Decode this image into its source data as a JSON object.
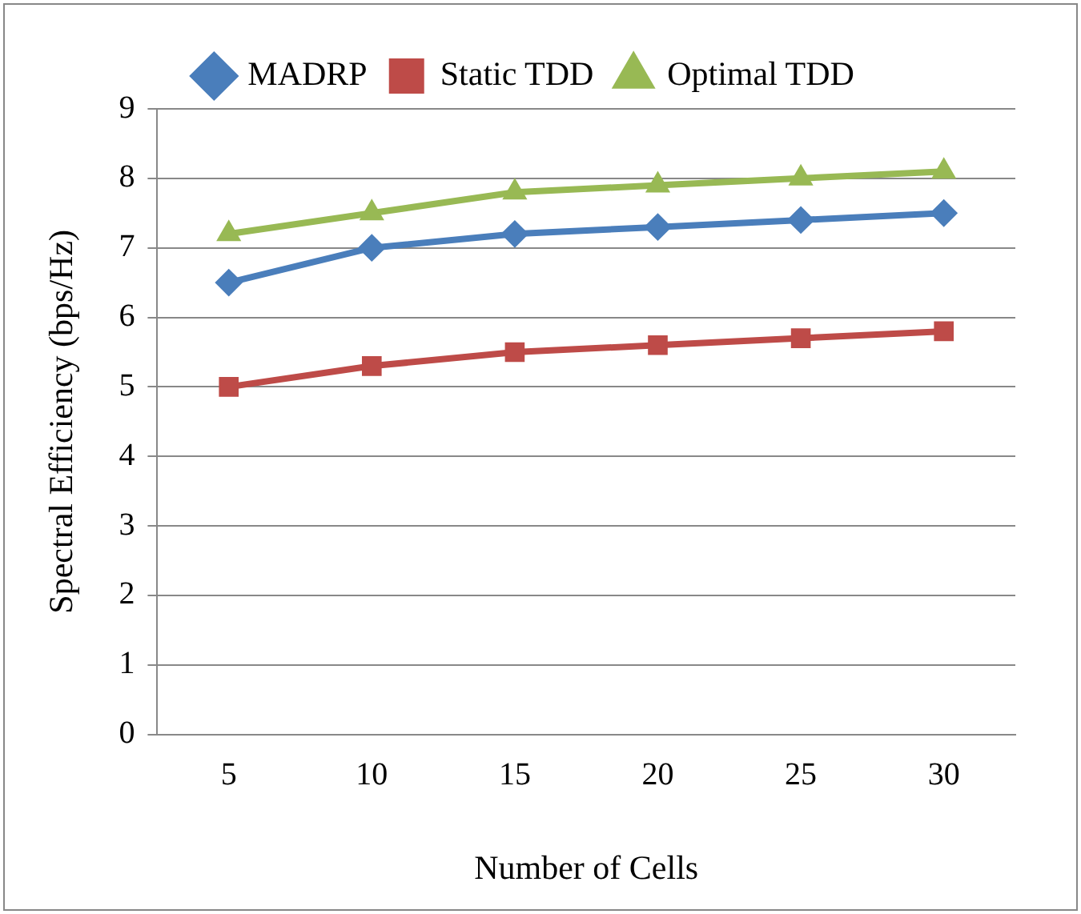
{
  "chart_data": {
    "type": "line",
    "xlabel": "Number of Cells",
    "ylabel": "Spectral Efficiency (bps/Hz)",
    "categories": [
      "5",
      "10",
      "15",
      "20",
      "25",
      "30"
    ],
    "series": [
      {
        "name": "MADRP",
        "color": "#4a7ebb",
        "marker": "diamond",
        "values": [
          6.5,
          7.0,
          7.2,
          7.3,
          7.4,
          7.5
        ]
      },
      {
        "name": "Static TDD",
        "color": "#be4b48",
        "marker": "square",
        "values": [
          5.0,
          5.3,
          5.5,
          5.6,
          5.7,
          5.8
        ]
      },
      {
        "name": "Optimal TDD",
        "color": "#98b954",
        "marker": "triangle",
        "values": [
          7.2,
          7.5,
          7.8,
          7.9,
          8.0,
          8.1
        ]
      }
    ],
    "ylim": [
      0,
      9
    ],
    "yticks": [
      0,
      1,
      2,
      3,
      4,
      5,
      6,
      7,
      8,
      9
    ],
    "grid": "y",
    "legend": "top",
    "line_style": "solid"
  }
}
